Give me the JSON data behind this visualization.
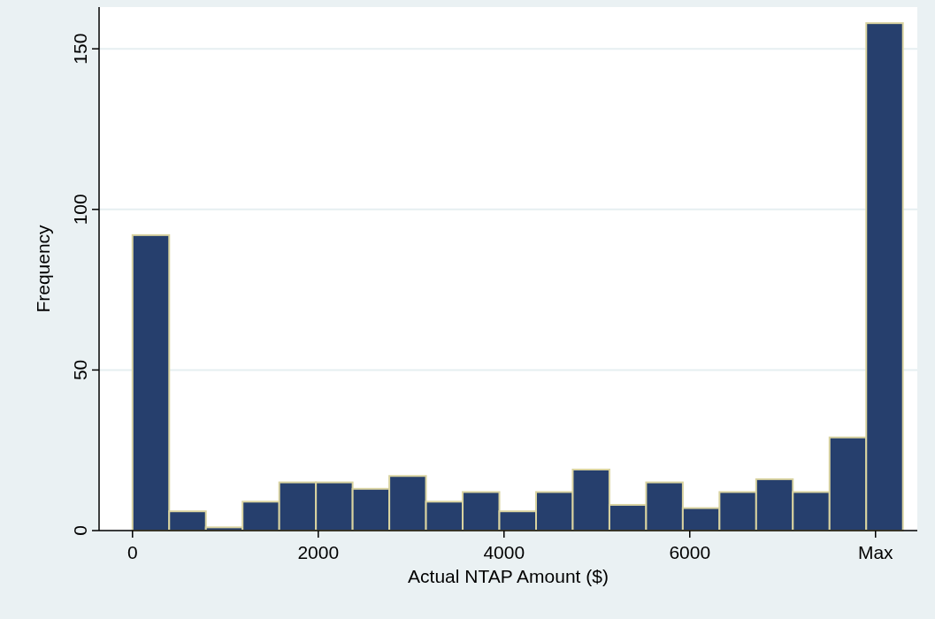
{
  "chart_data": {
    "type": "histogram",
    "xlabel": "Actual NTAP Amount ($)",
    "ylabel": "Frequency",
    "bins": [
      0,
      395,
      790,
      1185,
      1580,
      1975,
      2370,
      2765,
      3160,
      3555,
      3950,
      4345,
      4740,
      5135,
      5530,
      5925,
      6320,
      6715,
      7110,
      7505,
      7900,
      8295
    ],
    "values": [
      92,
      6,
      1,
      9,
      15,
      15,
      13,
      17,
      9,
      12,
      6,
      12,
      19,
      8,
      15,
      7,
      12,
      16,
      12,
      29,
      158
    ],
    "color": "#263f6d",
    "xlim": [
      -360,
      8450
    ],
    "xticks": [
      0,
      2000,
      4000,
      6000,
      {
        "value": 8000,
        "label": "Max"
      }
    ],
    "ylim": [
      0,
      163
    ],
    "yticks": [
      0,
      50,
      100,
      150
    ],
    "grid": "y"
  }
}
